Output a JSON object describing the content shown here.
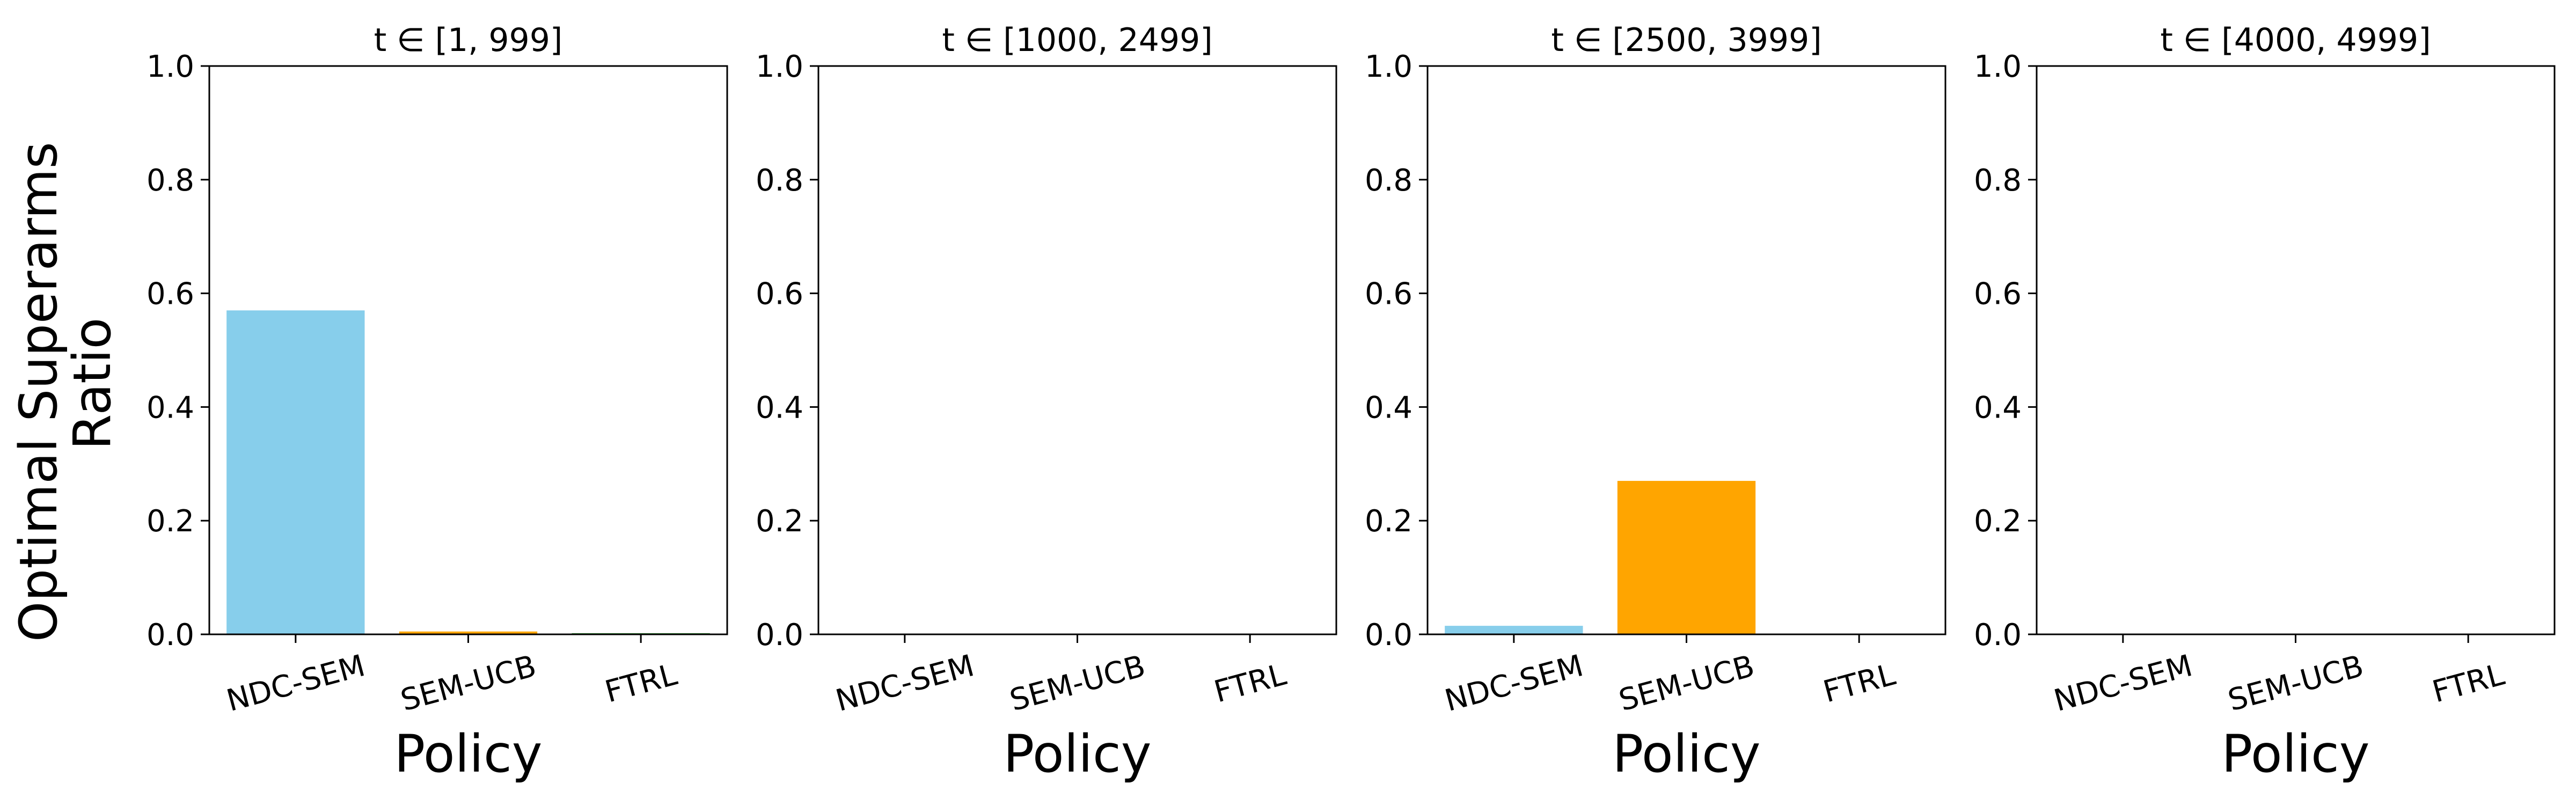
{
  "figure": {
    "ylabel_lines": [
      "Optimal Superarms",
      "Ratio"
    ]
  },
  "chart_data": [
    {
      "type": "bar",
      "title": "t ∈ [1, 999]",
      "xlabel": "Policy",
      "categories": [
        "NDC-SEM",
        "SEM-UCB",
        "FTRL"
      ],
      "values": [
        0.57,
        0.005,
        0.002
      ],
      "colors": [
        "#87ceeb",
        "#ffa500",
        "#2ca02c"
      ],
      "ylim": [
        0,
        1.0
      ],
      "yticks": [
        "0.0",
        "0.2",
        "0.4",
        "0.6",
        "0.8",
        "1.0"
      ],
      "grid": false
    },
    {
      "type": "bar",
      "title": "t ∈ [1000, 2499]",
      "xlabel": "Policy",
      "categories": [
        "NDC-SEM",
        "SEM-UCB",
        "FTRL"
      ],
      "values": [
        0.001,
        0.001,
        0.0
      ],
      "colors": [
        "#87ceeb",
        "#ffa500",
        "#2ca02c"
      ],
      "ylim": [
        0,
        1.0
      ],
      "yticks": [
        "0.0",
        "0.2",
        "0.4",
        "0.6",
        "0.8",
        "1.0"
      ],
      "grid": false
    },
    {
      "type": "bar",
      "title": "t ∈ [2500, 3999]",
      "xlabel": "Policy",
      "categories": [
        "NDC-SEM",
        "SEM-UCB",
        "FTRL"
      ],
      "values": [
        0.015,
        0.27,
        0.0
      ],
      "colors": [
        "#87ceeb",
        "#ffa500",
        "#2ca02c"
      ],
      "ylim": [
        0,
        1.0
      ],
      "yticks": [
        "0.0",
        "0.2",
        "0.4",
        "0.6",
        "0.8",
        "1.0"
      ],
      "grid": false
    },
    {
      "type": "bar",
      "title": "t ∈ [4000, 4999]",
      "xlabel": "Policy",
      "categories": [
        "NDC-SEM",
        "SEM-UCB",
        "FTRL"
      ],
      "values": [
        0.001,
        0.001,
        0.0
      ],
      "colors": [
        "#87ceeb",
        "#ffa500",
        "#2ca02c"
      ],
      "ylim": [
        0,
        1.0
      ],
      "yticks": [
        "0.0",
        "0.2",
        "0.4",
        "0.6",
        "0.8",
        "1.0"
      ],
      "grid": false
    }
  ]
}
